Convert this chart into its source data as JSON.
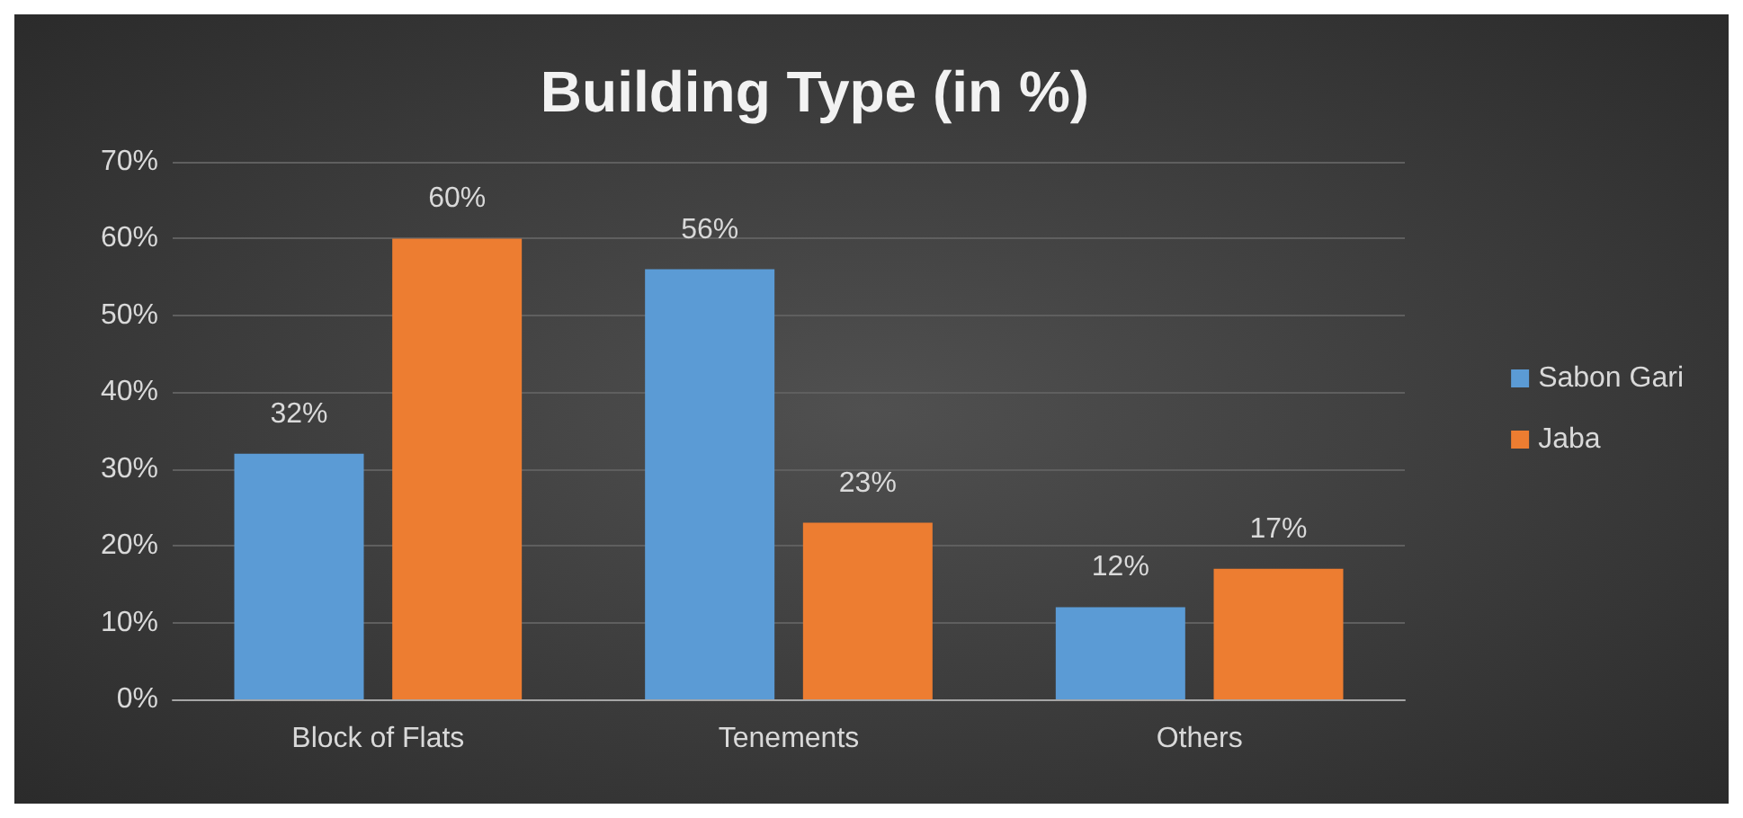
{
  "chart_data": {
    "type": "bar",
    "title": "Building Type (in %)",
    "categories": [
      "Block of Flats",
      "Tenements",
      "Others"
    ],
    "series": [
      {
        "name": "Sabon Gari",
        "color": "#5b9bd5",
        "values": [
          32,
          56,
          12
        ],
        "value_labels": [
          "32%",
          "56%",
          "12%"
        ]
      },
      {
        "name": "Jaba",
        "color": "#ed7d31",
        "values": [
          60,
          23,
          17
        ],
        "value_labels": [
          "60%",
          "23%",
          "17%"
        ]
      }
    ],
    "ylim": [
      0,
      70
    ],
    "yticks": [
      {
        "value": 0,
        "label": "0%"
      },
      {
        "value": 10,
        "label": "10%"
      },
      {
        "value": 20,
        "label": "20%"
      },
      {
        "value": 30,
        "label": "30%"
      },
      {
        "value": 40,
        "label": "40%"
      },
      {
        "value": 50,
        "label": "50%"
      },
      {
        "value": 60,
        "label": "60%"
      },
      {
        "value": 70,
        "label": "70%"
      }
    ],
    "grid": "y",
    "legend": "right"
  }
}
